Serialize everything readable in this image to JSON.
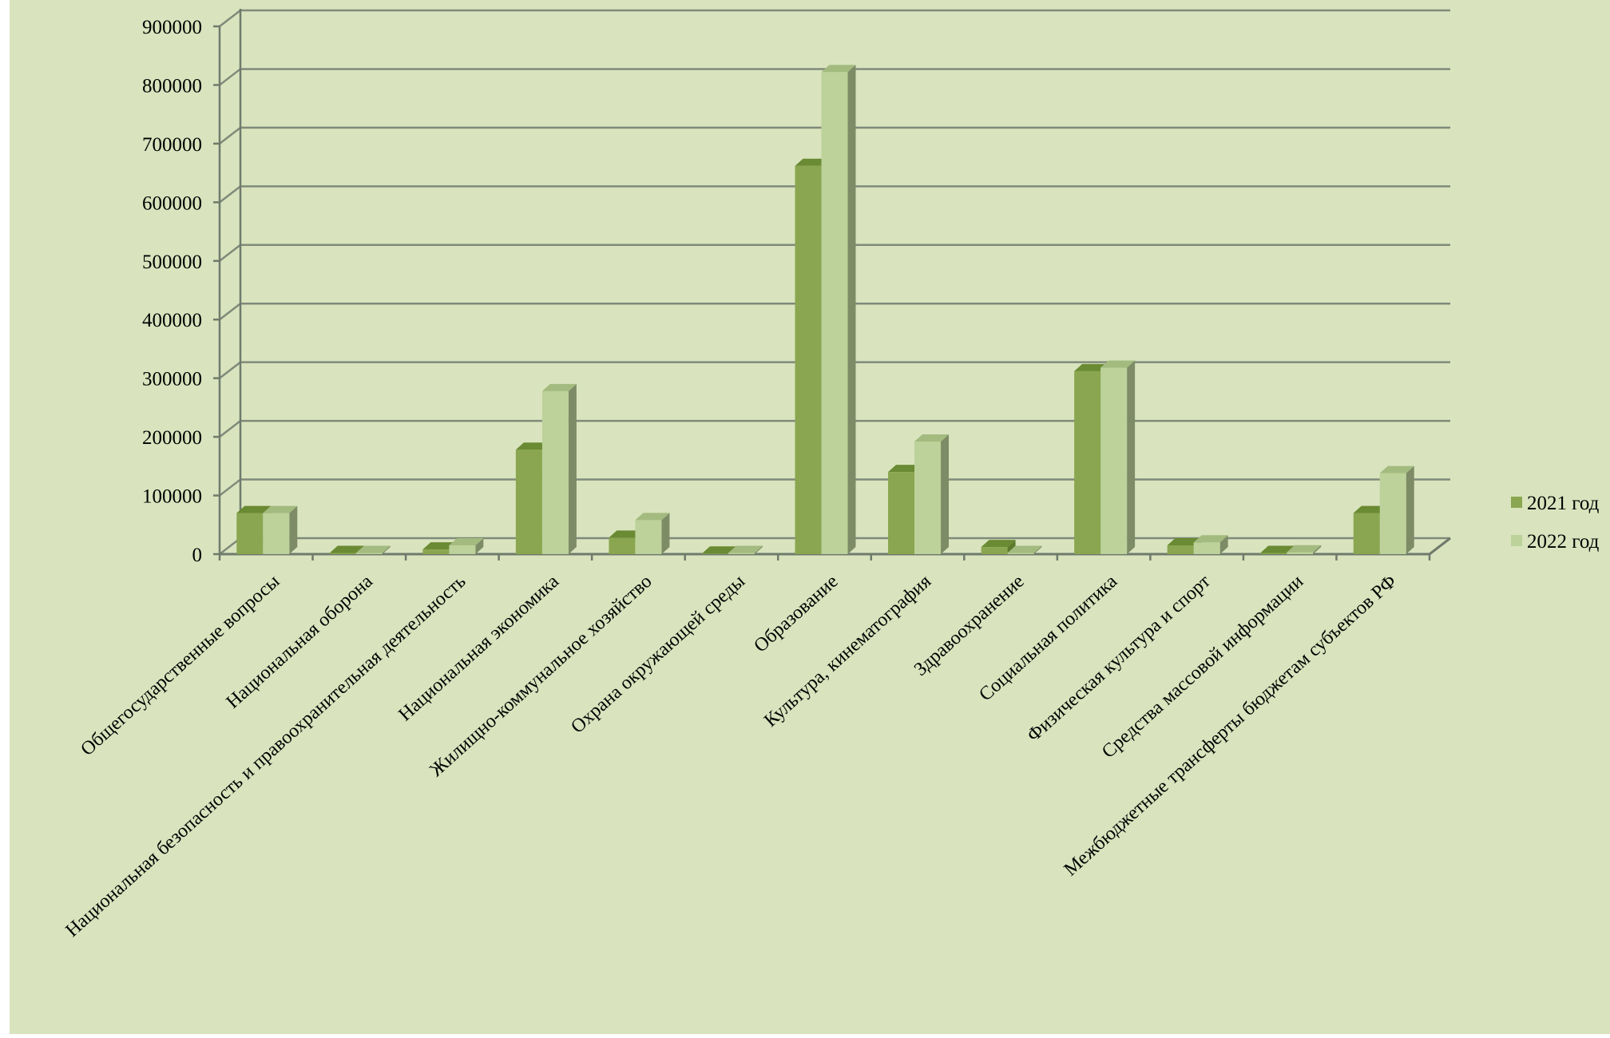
{
  "chart_data": {
    "type": "bar",
    "categories": [
      "Общегосударственные вопросы",
      "Национальная оборона",
      "Национальная безопасность и правоохранительная деятельность",
      "Национальная экономика",
      "Жилищно-коммунальное хозяйство",
      "Охрана окружающей среды",
      "Образование",
      "Культура, кинематография",
      "Здравоохранение",
      "Социальная политика",
      "Физическая культура и спорт",
      "Средства массовой информации",
      "Межбюджетные трансферты бюджетам субъектов РФ"
    ],
    "series": [
      {
        "name": "2021 год",
        "values": [
          70000,
          2000,
          8000,
          178000,
          28000,
          1000,
          662000,
          140000,
          12000,
          312000,
          15000,
          2000,
          70000
        ],
        "color": "#8aa650",
        "topColor": "#6a8a33",
        "sideColor": "#5d7a2c"
      },
      {
        "name": "2022 год",
        "values": [
          70000,
          2000,
          15000,
          278000,
          58000,
          2000,
          822000,
          192000,
          2000,
          318000,
          20000,
          3000,
          138000
        ],
        "color": "#bcd29a",
        "topColor": "#a3bb7f",
        "sideColor": "#7d8c66"
      }
    ],
    "yticks": [
      "0",
      "100000",
      "200000",
      "300000",
      "400000",
      "500000",
      "600000",
      "700000",
      "800000",
      "900000"
    ],
    "ylim": [
      0,
      900000
    ],
    "legend_position": "right",
    "grid": true,
    "colors": {
      "background": "#d9e4be",
      "grid": "#7f8a7a",
      "axis": "#6f7a6c"
    }
  }
}
